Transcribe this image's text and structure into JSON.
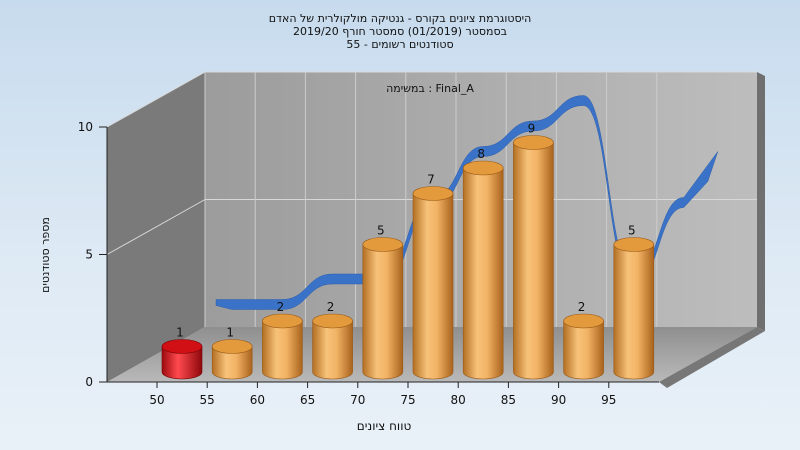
{
  "chart_data": {
    "type": "bar",
    "title_lines": [
      "היסטוגרמת ציונים בקורס - גנטיקה מולקולרית של האדם",
      "בסמסטר (01/2019) סמסטר חורף 2019/20",
      "סטודנטים רשומים - 55"
    ],
    "annotation": "במשימה : Final_A",
    "xlabel": "טווח ציונים",
    "ylabel": "מספר סטודנטים",
    "categories": [
      "50",
      "55",
      "60",
      "65",
      "70",
      "75",
      "80",
      "85",
      "90",
      "95"
    ],
    "values": [
      1,
      1,
      2,
      2,
      5,
      7,
      8,
      9,
      2,
      5
    ],
    "bar_colors": [
      "#e0141a",
      "#e8a44a",
      "#e8a44a",
      "#e8a44a",
      "#e8a44a",
      "#e8a44a",
      "#e8a44a",
      "#e8a44a",
      "#e8a44a",
      "#e8a44a"
    ],
    "y_ticks": [
      "0",
      "5",
      "10"
    ],
    "ylim": [
      0,
      10
    ],
    "curve_color": "#3a72c8",
    "grid": true
  }
}
